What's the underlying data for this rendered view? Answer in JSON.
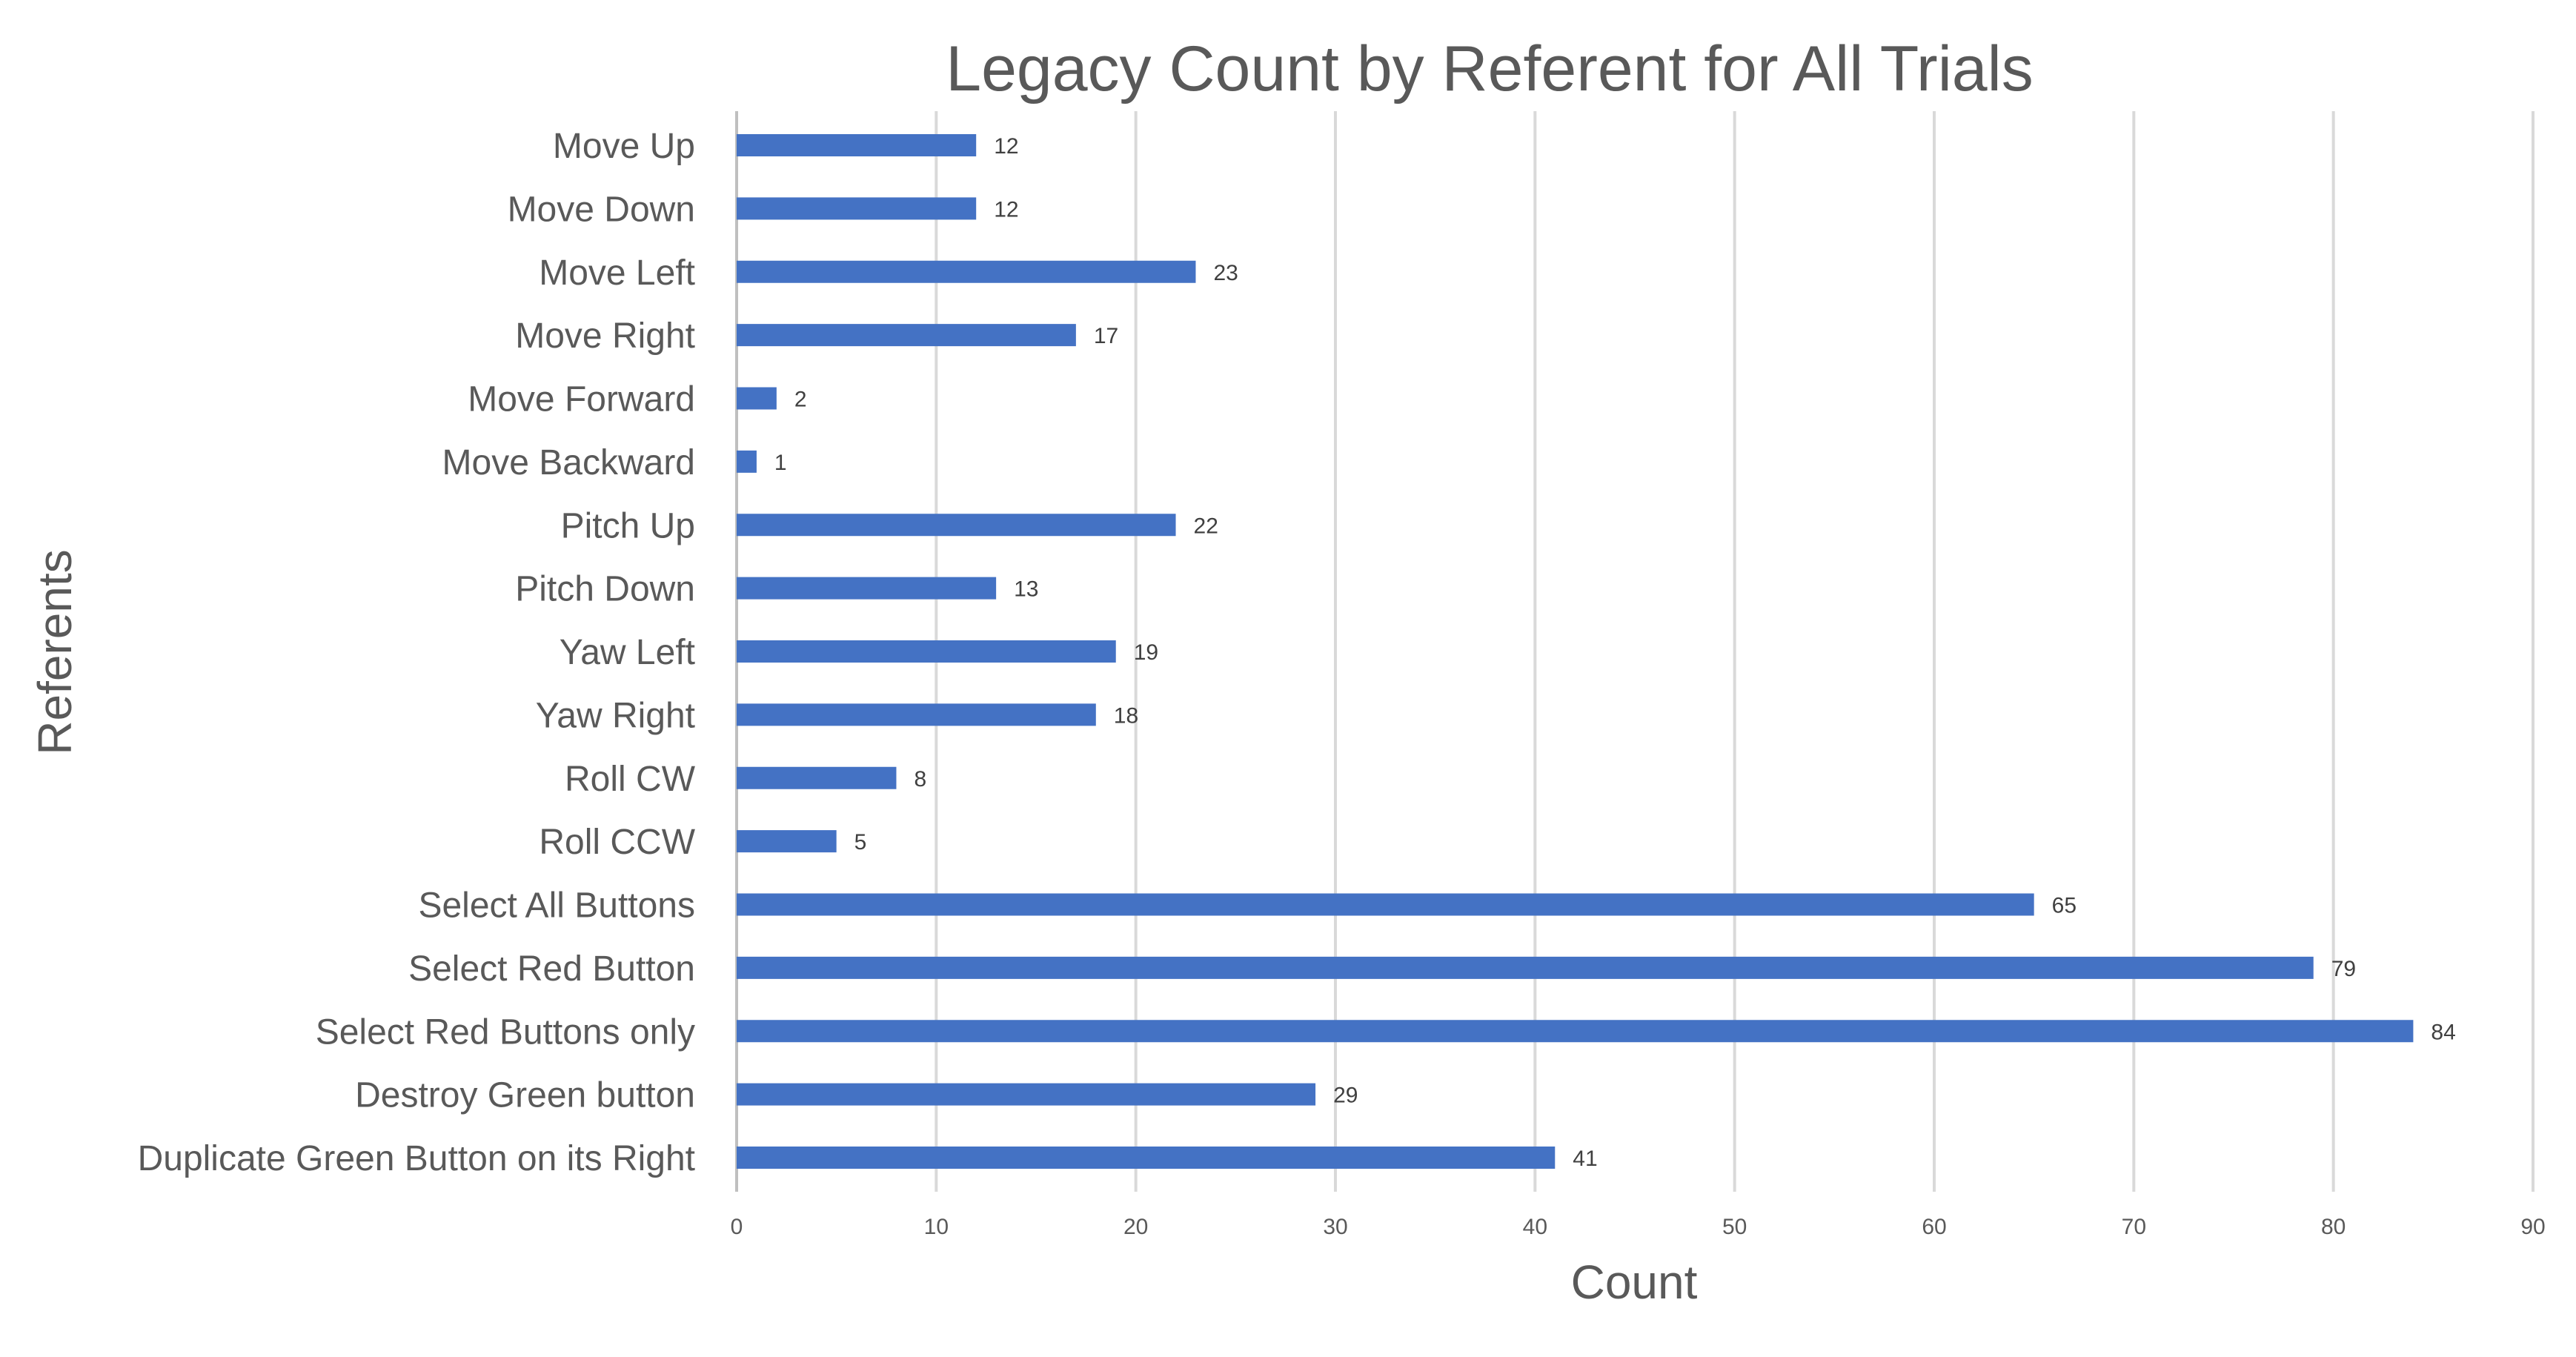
{
  "chart_data": {
    "type": "bar",
    "orientation": "horizontal",
    "title": "Legacy Count by Referent for All Trials",
    "xlabel": "Count",
    "ylabel": "Referents",
    "xlim": [
      0,
      90
    ],
    "x_ticks": [
      0,
      10,
      20,
      30,
      40,
      50,
      60,
      70,
      80,
      90
    ],
    "grid": true,
    "legend": "none",
    "bar_color": "#4472C4",
    "categories": [
      "Move Up",
      "Move Down",
      "Move Left",
      "Move Right",
      "Move Forward",
      "Move Backward",
      "Pitch Up",
      "Pitch Down",
      "Yaw Left",
      "Yaw Right",
      "Roll CW",
      "Roll CCW",
      "Select All Buttons",
      "Select Red Button",
      "Select Red Buttons only",
      "Destroy Green button",
      "Duplicate Green Button on its Right"
    ],
    "values": [
      12,
      12,
      23,
      17,
      2,
      1,
      22,
      13,
      19,
      18,
      8,
      5,
      65,
      79,
      84,
      29,
      41
    ]
  }
}
